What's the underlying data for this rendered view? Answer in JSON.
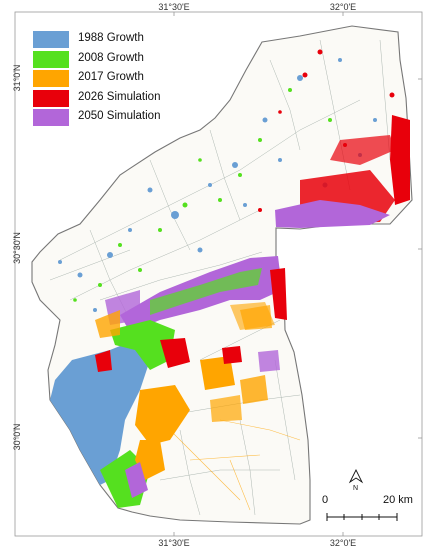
{
  "map": {
    "coordinate_labels": {
      "top": [
        "31°30'E",
        "32°0'E"
      ],
      "bottom": [
        "31°30'E",
        "32°0'E"
      ],
      "left": [
        "31°0'N",
        "30°30'N",
        "30°0'N"
      ]
    },
    "legend": [
      {
        "label": "1988 Growth",
        "color": "#6a9fd4"
      },
      {
        "label": "2008 Growth",
        "color": "#55e01f"
      },
      {
        "label": "2017 Growth",
        "color": "#ffa500"
      },
      {
        "label": "2026 Simulation",
        "color": "#e8000b"
      },
      {
        "label": "2050 Simulation",
        "color": "#b266d9"
      }
    ],
    "scale_bar": {
      "start": "0",
      "end": "20 km"
    },
    "north_arrow": "N",
    "colors": {
      "boundary": "#777777",
      "background": "#ffffff"
    }
  }
}
